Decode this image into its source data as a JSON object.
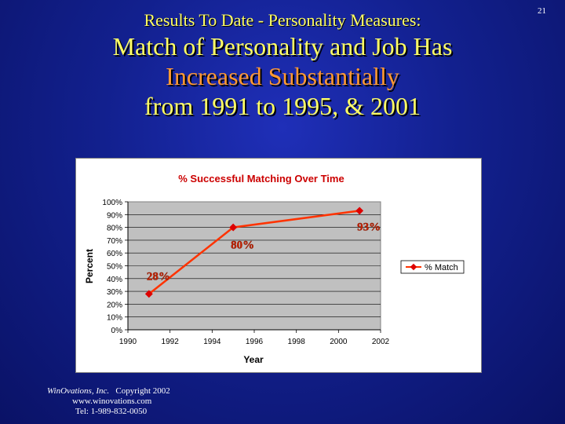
{
  "slide_number": "21",
  "header": {
    "subtitle": "Results To Date - Personality Measures:",
    "line1": "Match of Personality and Job Has",
    "line2": "Increased Substantially",
    "line3": "from 1991 to 1995, & 2001"
  },
  "footer": {
    "company": "WinOvations, Inc.",
    "copyright": "Copyright 2002",
    "website": "www.winovations.com",
    "phone": "Tel:  1-989-832-0050"
  },
  "colors": {
    "background": "#12208e",
    "title_yellow": "#ffff66",
    "title_orange": "#ff9933",
    "series_line": "#ff3300",
    "series_marker": "#dd0000",
    "plot_area": "#c0c0c0",
    "chart_title": "#cc0000"
  },
  "chart_data": {
    "type": "line",
    "title": "% Successful Matching Over Time",
    "xlabel": "Year",
    "ylabel": "Percent",
    "x_ticks": [
      "1990",
      "1992",
      "1994",
      "1996",
      "1998",
      "2000",
      "2002"
    ],
    "y_ticks": [
      "0%",
      "10%",
      "20%",
      "30%",
      "40%",
      "50%",
      "60%",
      "70%",
      "80%",
      "90%",
      "100%"
    ],
    "xlim": [
      1990,
      2002
    ],
    "ylim": [
      0,
      100
    ],
    "grid": true,
    "legend_position": "right",
    "series": [
      {
        "name": "% Match",
        "points": [
          {
            "x": 1991,
            "y": 28,
            "label": "28%"
          },
          {
            "x": 1995,
            "y": 80,
            "label": "80%"
          },
          {
            "x": 2001,
            "y": 93,
            "label": "93%"
          }
        ]
      }
    ]
  }
}
